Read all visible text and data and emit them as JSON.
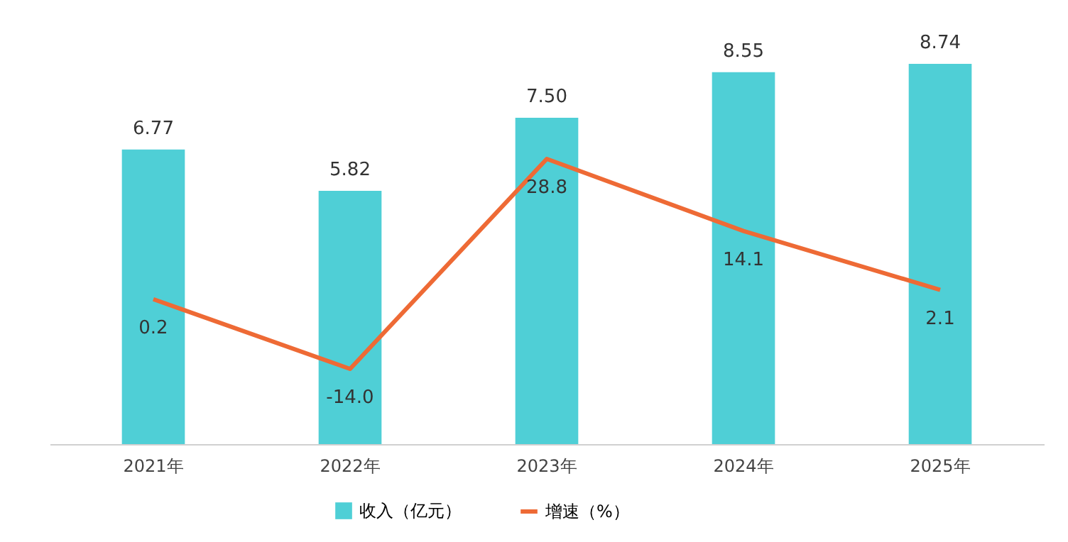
{
  "chart_data": {
    "type": "bar",
    "categories": [
      "2021年",
      "2022年",
      "2023年",
      "2024年",
      "2025年"
    ],
    "series": [
      {
        "name": "收入（亿元）",
        "color": "#4fcfd6",
        "values": [
          6.77,
          5.82,
          7.5,
          8.55,
          8.74
        ],
        "value_labels": [
          "6.77",
          "5.82",
          "7.50",
          "8.55",
          "8.74"
        ]
      },
      {
        "name": "增速（%）",
        "type": "line",
        "axis": "y2",
        "color": "#ee6a35",
        "values": [
          0.2,
          -14.0,
          28.8,
          14.1,
          2.1
        ],
        "value_labels": [
          "0.2",
          "-14.0",
          "28.8",
          "14.1",
          "2.1"
        ]
      }
    ],
    "legend": "bottom",
    "line_style": "solid"
  }
}
